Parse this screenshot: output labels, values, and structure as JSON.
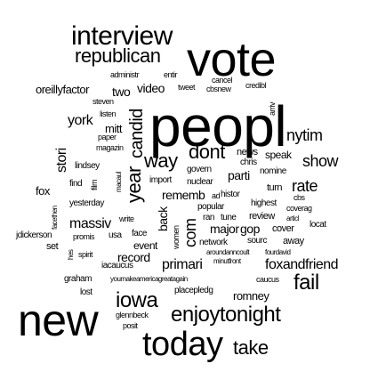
{
  "cloud": {
    "text_color": "#000000",
    "background": "#ffffff",
    "words": [
      "peopl",
      "vote",
      "new",
      "today",
      "enjoytonight",
      "interview",
      "republican",
      "iowa",
      "fail",
      "year",
      "way",
      "dont",
      "show",
      "nytim",
      "take",
      "candid",
      "rate",
      "com",
      "mitt",
      "video",
      "two",
      "york",
      "stori",
      "massiv",
      "primari",
      "foxandfriend",
      "gop",
      "parti",
      "back",
      "rememb",
      "oreillyfactor",
      "major",
      "romney",
      "record",
      "event",
      "speak",
      "review",
      "cover",
      "turn",
      "news",
      "chris",
      "nomine",
      "highest",
      "cancel",
      "credibl",
      "cbsnew",
      "tweet",
      "entir",
      "administr",
      "arriv",
      "steven",
      "listen",
      "paper",
      "magazin",
      "lindsey",
      "fox",
      "find",
      "film",
      "facethen",
      "jdickerson",
      "promis",
      "usa",
      "write",
      "face",
      "yesterday",
      "set",
      "hes",
      "spirit",
      "iacaucus",
      "graham",
      "youmakeamericagreatagain",
      "lost",
      "placepledg",
      "glennbeck",
      "posit",
      "aroundanncoult",
      "fourdavid",
      "caucus",
      "minutfront",
      "network",
      "sourc",
      "away",
      "locat",
      "articl",
      "coverag",
      "cbs",
      "ran",
      "tune",
      "popular",
      "import",
      "nuclear",
      "govern",
      "histor",
      "women",
      "macaul",
      "ad"
    ]
  }
}
